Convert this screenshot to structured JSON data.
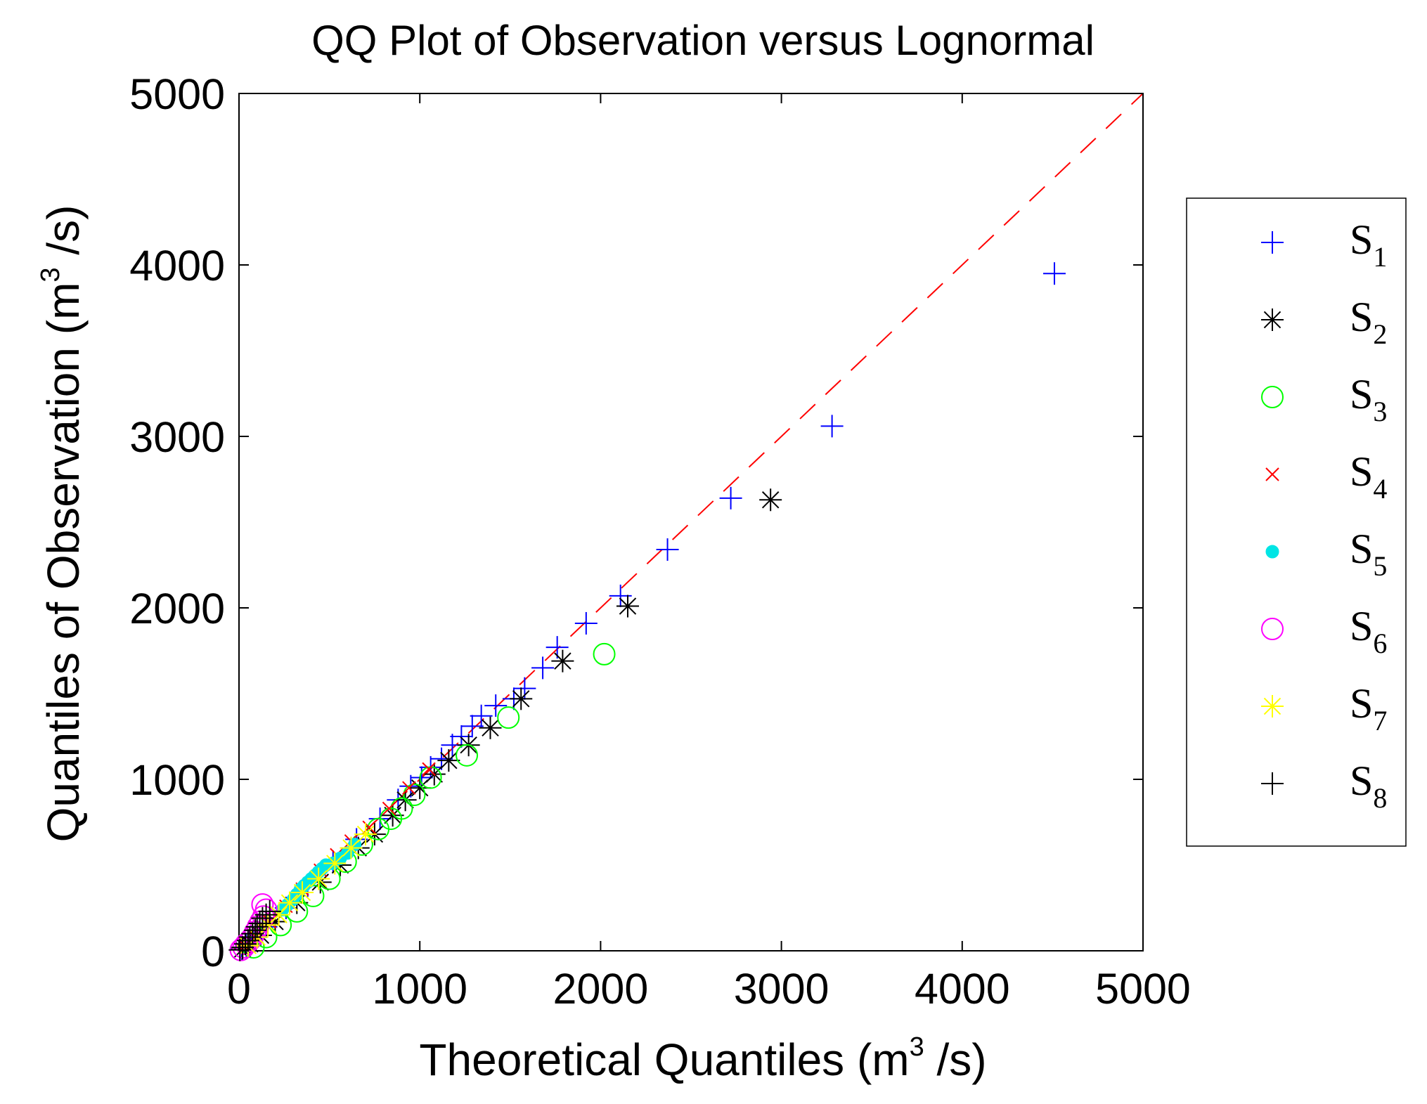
{
  "chart_data": {
    "type": "scatter",
    "title": "QQ Plot of Observation versus Lognormal",
    "xlabel": {
      "prefix": "Theoretical Quantiles (m",
      "sup": "3",
      "suffix": " /s)"
    },
    "ylabel": {
      "prefix": "Quantiles of Observation (m",
      "sup": "3",
      "suffix": " /s)"
    },
    "xlim": [
      0,
      5000
    ],
    "ylim": [
      0,
      5000
    ],
    "xticks": [
      "0",
      "1000",
      "2000",
      "3000",
      "4000",
      "5000"
    ],
    "yticks": [
      "0",
      "1000",
      "2000",
      "3000",
      "4000",
      "5000"
    ],
    "grid": false,
    "legend_position": "right",
    "reference_line": {
      "style": "dashed",
      "color": "#ff0000",
      "from": [
        0,
        0
      ],
      "to": [
        5000,
        5000
      ]
    },
    "series": [
      {
        "name": "S",
        "sub": "1",
        "marker": "plus",
        "color": "#0000ff",
        "points": [
          [
            15,
            10
          ],
          [
            40,
            30
          ],
          [
            80,
            70
          ],
          [
            150,
            140
          ],
          [
            260,
            250
          ],
          [
            380,
            380
          ],
          [
            520,
            520
          ],
          [
            650,
            650
          ],
          [
            780,
            770
          ],
          [
            880,
            880
          ],
          [
            950,
            960
          ],
          [
            1010,
            1010
          ],
          [
            1060,
            1070
          ],
          [
            1120,
            1120
          ],
          [
            1180,
            1200
          ],
          [
            1230,
            1250
          ],
          [
            1290,
            1310
          ],
          [
            1340,
            1370
          ],
          [
            1420,
            1430
          ],
          [
            1520,
            1470
          ],
          [
            1580,
            1530
          ],
          [
            1680,
            1650
          ],
          [
            1760,
            1770
          ],
          [
            1920,
            1910
          ],
          [
            2110,
            2070
          ],
          [
            2370,
            2340
          ],
          [
            2720,
            2640
          ],
          [
            3280,
            3060
          ],
          [
            4510,
            3950
          ]
        ]
      },
      {
        "name": "S",
        "sub": "2",
        "marker": "asterisk",
        "color": "#000000",
        "points": [
          [
            20,
            10
          ],
          [
            60,
            40
          ],
          [
            120,
            90
          ],
          [
            200,
            170
          ],
          [
            320,
            280
          ],
          [
            450,
            400
          ],
          [
            560,
            500
          ],
          [
            660,
            600
          ],
          [
            750,
            680
          ],
          [
            850,
            790
          ],
          [
            920,
            880
          ],
          [
            1000,
            950
          ],
          [
            1080,
            1030
          ],
          [
            1160,
            1110
          ],
          [
            1270,
            1200
          ],
          [
            1390,
            1300
          ],
          [
            1560,
            1470
          ],
          [
            1790,
            1690
          ],
          [
            2150,
            2010
          ],
          [
            2940,
            2630
          ]
        ]
      },
      {
        "name": "S",
        "sub": "3",
        "marker": "circle",
        "color": "#00ff00",
        "points": [
          [
            80,
            20
          ],
          [
            150,
            80
          ],
          [
            230,
            150
          ],
          [
            320,
            230
          ],
          [
            410,
            320
          ],
          [
            500,
            420
          ],
          [
            590,
            520
          ],
          [
            680,
            620
          ],
          [
            770,
            710
          ],
          [
            840,
            770
          ],
          [
            900,
            830
          ],
          [
            970,
            910
          ],
          [
            1060,
            1010
          ],
          [
            1260,
            1140
          ],
          [
            1490,
            1360
          ],
          [
            2020,
            1730
          ]
        ]
      },
      {
        "name": "S",
        "sub": "4",
        "marker": "x",
        "color": "#ff0000",
        "points": [
          [
            30,
            30
          ],
          [
            90,
            80
          ],
          [
            170,
            170
          ],
          [
            260,
            260
          ],
          [
            350,
            360
          ],
          [
            450,
            470
          ],
          [
            540,
            560
          ],
          [
            620,
            640
          ],
          [
            720,
            720
          ],
          [
            830,
            830
          ],
          [
            940,
            950
          ],
          [
            1050,
            1060
          ]
        ]
      },
      {
        "name": "S",
        "sub": "5",
        "marker": "dot",
        "color": "#00e5e5",
        "points": [
          [
            240,
            240
          ],
          [
            270,
            270
          ],
          [
            300,
            300
          ],
          [
            320,
            330
          ],
          [
            340,
            360
          ],
          [
            360,
            380
          ],
          [
            380,
            400
          ],
          [
            400,
            420
          ],
          [
            420,
            440
          ],
          [
            440,
            460
          ],
          [
            460,
            480
          ],
          [
            480,
            500
          ],
          [
            520,
            510
          ],
          [
            560,
            540
          ],
          [
            600,
            570
          ],
          [
            640,
            620
          ]
        ]
      },
      {
        "name": "S",
        "sub": "6",
        "marker": "circle",
        "color": "#ff00ff",
        "points": [
          [
            10,
            5
          ],
          [
            25,
            20
          ],
          [
            40,
            40
          ],
          [
            60,
            60
          ],
          [
            75,
            80
          ],
          [
            90,
            110
          ],
          [
            105,
            140
          ],
          [
            120,
            170
          ],
          [
            135,
            200
          ],
          [
            150,
            240
          ],
          [
            130,
            270
          ]
        ]
      },
      {
        "name": "S",
        "sub": "7",
        "marker": "asterisk",
        "color": "#ffff00",
        "points": [
          [
            50,
            30
          ],
          [
            100,
            80
          ],
          [
            160,
            150
          ],
          [
            220,
            210
          ],
          [
            280,
            280
          ],
          [
            350,
            340
          ],
          [
            440,
            420
          ],
          [
            530,
            510
          ],
          [
            620,
            600
          ],
          [
            700,
            680
          ]
        ]
      },
      {
        "name": "S",
        "sub": "8",
        "marker": "plus",
        "color": "#000000",
        "points": [
          [
            5,
            5
          ],
          [
            20,
            20
          ],
          [
            35,
            40
          ],
          [
            50,
            60
          ],
          [
            60,
            80
          ],
          [
            75,
            100
          ],
          [
            90,
            120
          ],
          [
            100,
            140
          ],
          [
            115,
            160
          ],
          [
            130,
            190
          ],
          [
            150,
            210
          ],
          [
            170,
            230
          ]
        ]
      }
    ]
  }
}
